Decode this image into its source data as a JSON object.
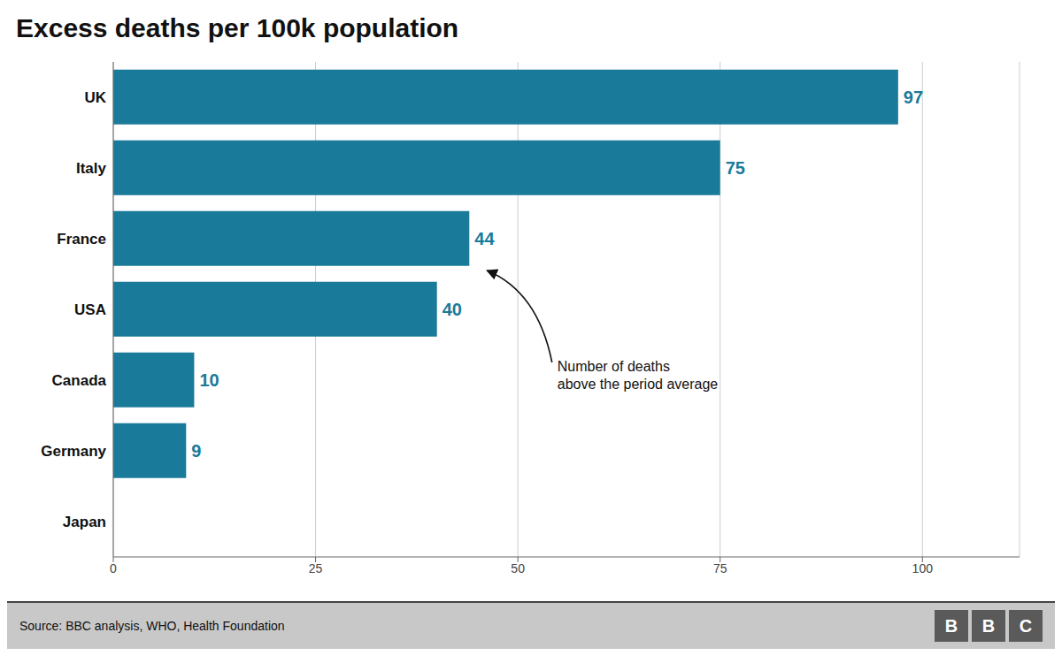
{
  "chart_data": {
    "type": "bar",
    "orientation": "horizontal",
    "title": "Excess deaths per 100k population",
    "categories": [
      "UK",
      "Italy",
      "France",
      "USA",
      "Canada",
      "Germany",
      "Japan"
    ],
    "values": [
      97,
      75,
      44,
      40,
      10,
      9,
      0
    ],
    "color": "#1a7a9a",
    "xlim": [
      0,
      112
    ],
    "xticks": [
      0,
      25,
      50,
      75,
      100
    ],
    "grid": true,
    "data_labels": true,
    "annotation": "Number of deaths\nabove the period average",
    "footer": "Source: BBC analysis, WHO, Health Foundation",
    "logo": "BBC"
  }
}
